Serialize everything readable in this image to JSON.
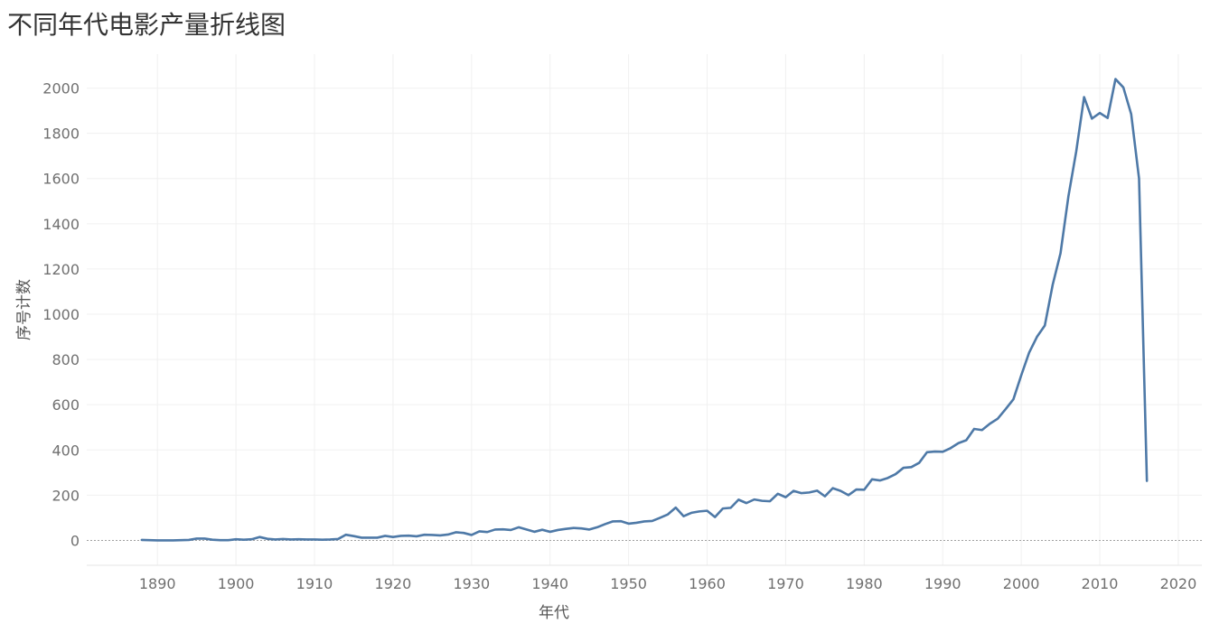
{
  "chart_data": {
    "type": "line",
    "title": "不同年代电影产量折线图",
    "xlabel": "年代",
    "ylabel": "序号计数",
    "xlim": [
      1881,
      2023
    ],
    "ylim": [
      -110,
      2150
    ],
    "x_ticks": [
      1890,
      1900,
      1910,
      1920,
      1930,
      1940,
      1950,
      1960,
      1970,
      1980,
      1990,
      2000,
      2010,
      2020
    ],
    "y_ticks": [
      0,
      200,
      400,
      600,
      800,
      1000,
      1200,
      1400,
      1600,
      1800,
      2000
    ],
    "grid": true,
    "color": "#4e79a7",
    "series": [
      {
        "x": [
          1888,
          1889,
          1890,
          1891,
          1892,
          1893,
          1894,
          1895,
          1896,
          1897,
          1898,
          1899,
          1900,
          1901,
          1902,
          1903,
          1904,
          1905,
          1906,
          1907,
          1908,
          1909,
          1910,
          1911,
          1912,
          1913,
          1914,
          1915,
          1916,
          1917,
          1918,
          1919,
          1920,
          1921,
          1922,
          1923,
          1924,
          1925,
          1926,
          1927,
          1928,
          1929,
          1930,
          1931,
          1932,
          1933,
          1934,
          1935,
          1936,
          1937,
          1938,
          1939,
          1940,
          1941,
          1942,
          1943,
          1944,
          1945,
          1946,
          1947,
          1948,
          1949,
          1950,
          1951,
          1952,
          1953,
          1954,
          1955,
          1956,
          1957,
          1958,
          1959,
          1960,
          1961,
          1962,
          1963,
          1964,
          1965,
          1966,
          1967,
          1968,
          1969,
          1970,
          1971,
          1972,
          1973,
          1974,
          1975,
          1976,
          1977,
          1978,
          1979,
          1980,
          1981,
          1982,
          1983,
          1984,
          1985,
          1986,
          1987,
          1988,
          1989,
          1990,
          1991,
          1992,
          1993,
          1994,
          1995,
          1996,
          1997,
          1998,
          1999,
          2000,
          2001,
          2002,
          2003,
          2004,
          2005,
          2006,
          2007,
          2008,
          2009,
          2010,
          2011,
          2012,
          2013,
          2014,
          2015,
          2016
        ],
        "y": [
          2,
          1,
          0,
          0,
          0,
          1,
          2,
          8,
          8,
          3,
          1,
          1,
          5,
          3,
          5,
          15,
          7,
          4,
          6,
          4,
          5,
          4,
          4,
          3,
          4,
          6,
          25,
          19,
          12,
          12,
          12,
          20,
          15,
          20,
          21,
          18,
          25,
          24,
          22,
          26,
          36,
          33,
          24,
          40,
          37,
          48,
          49,
          46,
          58,
          48,
          38,
          47,
          38,
          46,
          51,
          55,
          53,
          48,
          58,
          72,
          84,
          85,
          74,
          78,
          84,
          86,
          100,
          115,
          145,
          107,
          122,
          128,
          131,
          103,
          141,
          144,
          180,
          165,
          181,
          175,
          173,
          206,
          191,
          219,
          209,
          212,
          220,
          195,
          231,
          219,
          200,
          225,
          224,
          270,
          265,
          276,
          293,
          321,
          324,
          343,
          390,
          393,
          392,
          408,
          430,
          443,
          493,
          488,
          516,
          538,
          580,
          624,
          730,
          830,
          900,
          950,
          1130,
          1270,
          1520,
          1720,
          1960,
          1865,
          1890,
          1868,
          2040,
          2003,
          1885,
          1600,
          263
        ]
      }
    ]
  }
}
